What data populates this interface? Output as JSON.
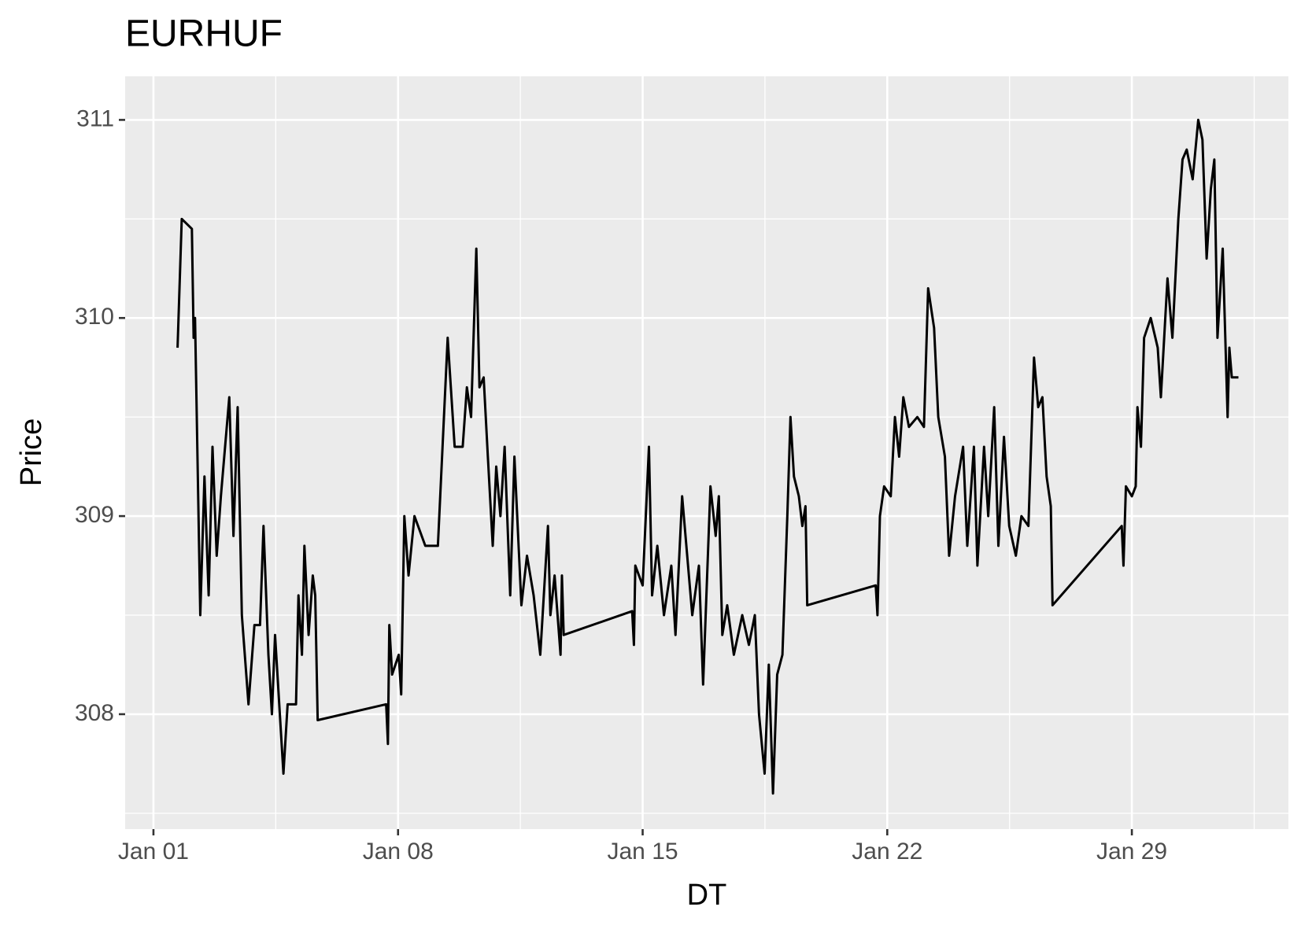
{
  "chart_data": {
    "type": "line",
    "title": "EURHUF",
    "x_label": "DT",
    "y_label": "Price",
    "color": "#000000",
    "grid": true,
    "xlim": [
      0.19,
      33.48
    ],
    "ylim": [
      307.42,
      311.22
    ],
    "xticks": [
      {
        "value": 1,
        "label": "Jan 01"
      },
      {
        "value": 8,
        "label": "Jan 08"
      },
      {
        "value": 15,
        "label": "Jan 15"
      },
      {
        "value": 22,
        "label": "Jan 22"
      },
      {
        "value": 29,
        "label": "Jan 29"
      }
    ],
    "yticks": [
      308,
      309,
      310,
      311
    ],
    "x": [
      1.69,
      1.81,
      2.1,
      2.15,
      2.19,
      2.34,
      2.46,
      2.58,
      2.69,
      2.81,
      2.93,
      3.17,
      3.29,
      3.41,
      3.53,
      3.72,
      3.89,
      4.05,
      4.15,
      4.29,
      4.39,
      4.48,
      4.72,
      4.84,
      5.08,
      5.15,
      5.25,
      5.32,
      5.44,
      5.56,
      5.63,
      5.7,
      7.66,
      7.71,
      7.75,
      7.83,
      8.02,
      8.09,
      8.18,
      8.3,
      8.47,
      8.78,
      9.14,
      9.26,
      9.42,
      9.62,
      9.85,
      9.97,
      10.09,
      10.24,
      10.33,
      10.45,
      10.57,
      10.71,
      10.81,
      10.93,
      11.05,
      11.21,
      11.33,
      11.53,
      11.69,
      11.88,
      12.07,
      12.29,
      12.36,
      12.48,
      12.65,
      12.69,
      12.74,
      14.7,
      14.75,
      14.79,
      15.0,
      15.18,
      15.27,
      15.42,
      15.61,
      15.82,
      15.94,
      16.13,
      16.42,
      16.61,
      16.73,
      16.94,
      17.09,
      17.18,
      17.28,
      17.42,
      17.61,
      17.85,
      18.04,
      18.21,
      18.33,
      18.49,
      18.61,
      18.73,
      18.85,
      19.0,
      19.14,
      19.23,
      19.33,
      19.47,
      19.57,
      19.66,
      19.71,
      21.67,
      21.72,
      21.79,
      21.91,
      22.1,
      22.22,
      22.34,
      22.46,
      22.62,
      22.86,
      23.05,
      23.17,
      23.34,
      23.46,
      23.65,
      23.77,
      23.94,
      24.17,
      24.29,
      24.48,
      24.58,
      24.77,
      24.89,
      25.06,
      25.18,
      25.34,
      25.49,
      25.68,
      25.84,
      26.04,
      26.2,
      26.32,
      26.44,
      26.56,
      26.68,
      26.73,
      28.71,
      28.76,
      28.83,
      29.0,
      29.11,
      29.16,
      29.26,
      29.35,
      29.54,
      29.74,
      29.83,
      30.02,
      30.16,
      30.33,
      30.45,
      30.57,
      30.74,
      30.9,
      31.02,
      31.14,
      31.26,
      31.36,
      31.45,
      31.6,
      31.74,
      31.79,
      31.86,
      32.05
    ],
    "y": [
      309.85,
      310.5,
      310.45,
      309.9,
      310.0,
      308.5,
      309.2,
      308.6,
      309.35,
      308.8,
      309.1,
      309.6,
      308.9,
      309.55,
      308.5,
      308.05,
      308.45,
      308.45,
      308.95,
      308.3,
      308.0,
      308.4,
      307.7,
      308.05,
      308.05,
      308.6,
      308.3,
      308.85,
      308.4,
      308.7,
      308.6,
      307.97,
      308.05,
      307.85,
      308.45,
      308.2,
      308.3,
      308.1,
      309.0,
      308.7,
      309.0,
      308.85,
      308.85,
      309.3,
      309.9,
      309.35,
      309.35,
      309.65,
      309.5,
      310.35,
      309.65,
      309.7,
      309.3,
      308.85,
      309.25,
      309.0,
      309.35,
      308.6,
      309.3,
      308.55,
      308.8,
      308.6,
      308.3,
      308.95,
      308.5,
      308.7,
      308.3,
      308.7,
      308.4,
      308.52,
      308.35,
      308.75,
      308.65,
      309.35,
      308.6,
      308.85,
      308.5,
      308.75,
      308.4,
      309.1,
      308.5,
      308.75,
      308.15,
      309.15,
      308.9,
      309.1,
      308.4,
      308.55,
      308.3,
      308.5,
      308.35,
      308.5,
      308.0,
      307.7,
      308.25,
      307.6,
      308.2,
      308.3,
      309.0,
      309.5,
      309.2,
      309.1,
      308.95,
      309.05,
      308.55,
      308.65,
      308.5,
      309.0,
      309.15,
      309.1,
      309.5,
      309.3,
      309.6,
      309.45,
      309.5,
      309.45,
      310.15,
      309.95,
      309.5,
      309.3,
      308.8,
      309.1,
      309.35,
      308.85,
      309.35,
      308.75,
      309.35,
      309.0,
      309.55,
      308.85,
      309.4,
      308.95,
      308.8,
      309.0,
      308.95,
      309.8,
      309.55,
      309.6,
      309.2,
      309.05,
      308.55,
      308.95,
      308.75,
      309.15,
      309.1,
      309.15,
      309.55,
      309.35,
      309.9,
      310.0,
      309.85,
      309.6,
      310.2,
      309.9,
      310.5,
      310.8,
      310.85,
      310.7,
      311.0,
      310.9,
      310.3,
      310.65,
      310.8,
      309.9,
      310.35,
      309.5,
      309.85,
      309.7,
      309.7
    ]
  }
}
